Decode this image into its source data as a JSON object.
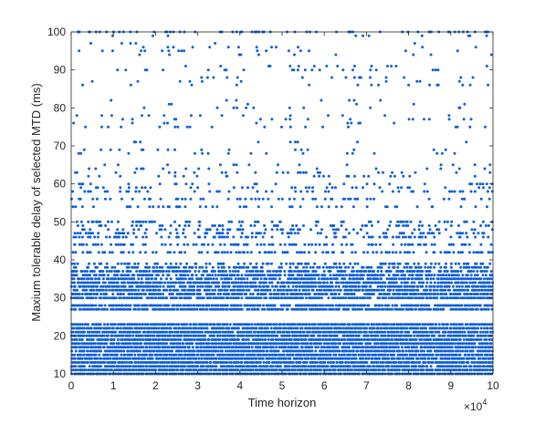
{
  "chart_data": {
    "type": "scatter",
    "title": "",
    "xlabel": "Time horizon",
    "ylabel": "Maxium tolerable delay of selected MTD (ms)",
    "xlim": [
      0,
      100000
    ],
    "ylim": [
      10,
      100
    ],
    "x_exponent_label": "×10",
    "x_exponent_power": "4",
    "xticks": [
      0,
      10000,
      20000,
      30000,
      40000,
      50000,
      60000,
      70000,
      80000,
      90000,
      100000
    ],
    "xtick_labels": [
      "0",
      "1",
      "2",
      "3",
      "4",
      "5",
      "6",
      "7",
      "8",
      "9",
      "10"
    ],
    "yticks": [
      10,
      20,
      30,
      40,
      50,
      60,
      70,
      80,
      90,
      100
    ],
    "ytick_labels": [
      "10",
      "20",
      "30",
      "40",
      "50",
      "60",
      "70",
      "80",
      "90",
      "100"
    ],
    "grid": false,
    "marker_color": "#0f5fd7",
    "marker": "filled-dot",
    "series": [
      {
        "values_description_levels": [
          {
            "y": 10,
            "density": 1.0
          },
          {
            "y": 11,
            "density": 1.0
          },
          {
            "y": 12,
            "density": 0.95
          },
          {
            "y": 13,
            "density": 0.95
          },
          {
            "y": 14,
            "density": 0.95
          },
          {
            "y": 15,
            "density": 0.95
          },
          {
            "y": 16,
            "density": 0.95
          },
          {
            "y": 17,
            "density": 0.95
          },
          {
            "y": 18,
            "density": 0.95
          },
          {
            "y": 19,
            "density": 0.95
          },
          {
            "y": 20,
            "density": 0.95
          },
          {
            "y": 21,
            "density": 0.95
          },
          {
            "y": 22,
            "density": 0.95
          },
          {
            "y": 23,
            "density": 0.95
          },
          {
            "y": 27,
            "density": 0.9
          },
          {
            "y": 28,
            "density": 0.9
          },
          {
            "y": 30,
            "density": 0.85
          },
          {
            "y": 31,
            "density": 0.85
          },
          {
            "y": 32,
            "density": 0.85
          },
          {
            "y": 33,
            "density": 0.85
          },
          {
            "y": 34,
            "density": 0.85
          },
          {
            "y": 35,
            "density": 0.8
          },
          {
            "y": 36,
            "density": 0.75
          },
          {
            "y": 37,
            "density": 0.7
          },
          {
            "y": 38,
            "density": 0.5
          },
          {
            "y": 39,
            "density": 0.35
          },
          {
            "y": 42,
            "density": 0.45
          },
          {
            "y": 44,
            "density": 0.45
          },
          {
            "y": 46,
            "density": 0.3
          },
          {
            "y": 47,
            "density": 0.3
          },
          {
            "y": 48,
            "density": 0.25
          },
          {
            "y": 49,
            "density": 0.25
          },
          {
            "y": 50,
            "density": 0.25
          },
          {
            "y": 54,
            "density": 0.2
          },
          {
            "y": 56,
            "density": 0.2
          },
          {
            "y": 58,
            "density": 0.15
          },
          {
            "y": 59,
            "density": 0.15
          },
          {
            "y": 60,
            "density": 0.12
          },
          {
            "y": 62,
            "density": 0.12
          },
          {
            "y": 63,
            "density": 0.12
          },
          {
            "y": 64,
            "density": 0.1
          },
          {
            "y": 65,
            "density": 0.08
          },
          {
            "y": 68,
            "density": 0.08
          },
          {
            "y": 69,
            "density": 0.06
          },
          {
            "y": 71,
            "density": 0.05
          },
          {
            "y": 75,
            "density": 0.06
          },
          {
            "y": 76,
            "density": 0.06
          },
          {
            "y": 77,
            "density": 0.06
          },
          {
            "y": 78,
            "density": 0.06
          },
          {
            "y": 80,
            "density": 0.05
          },
          {
            "y": 81,
            "density": 0.05
          },
          {
            "y": 82,
            "density": 0.04
          },
          {
            "y": 86,
            "density": 0.05
          },
          {
            "y": 87,
            "density": 0.05
          },
          {
            "y": 88,
            "density": 0.05
          },
          {
            "y": 90,
            "density": 0.05
          },
          {
            "y": 91,
            "density": 0.05
          },
          {
            "y": 94,
            "density": 0.04
          },
          {
            "y": 95,
            "density": 0.05
          },
          {
            "y": 96,
            "density": 0.04
          },
          {
            "y": 97,
            "density": 0.04
          },
          {
            "y": 99,
            "density": 0.04
          },
          {
            "y": 100,
            "density": 0.25
          }
        ]
      }
    ]
  }
}
